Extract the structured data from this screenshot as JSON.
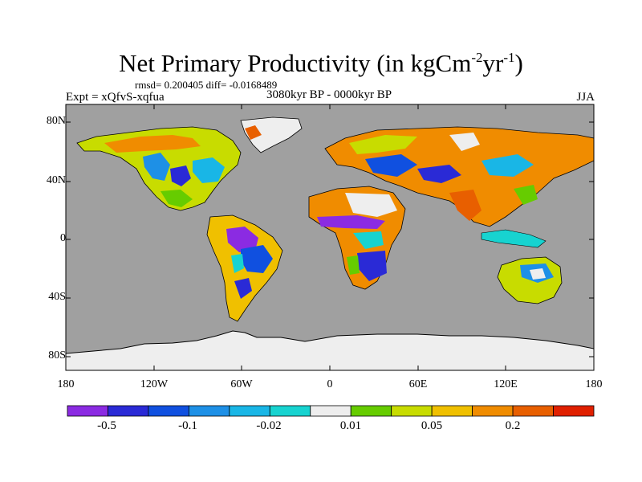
{
  "title": {
    "main": "Net Primary Productivity (in kgCm",
    "sup1": "-2",
    "mid": "yr",
    "sup2": "-1",
    "end": ")"
  },
  "stats": "rmsd= 0.200405  diff= -0.0168489",
  "experiment": "Expt = xQfvS-xqfua",
  "period": "3080kyr BP - 0000kyr BP",
  "season": "JJA",
  "lat_labels": [
    "80N",
    "40N",
    "0",
    "40S",
    "80S"
  ],
  "lon_labels": [
    "180",
    "120W",
    "60W",
    "0",
    "60E",
    "120E",
    "180"
  ],
  "colorbar": {
    "colors": [
      "#8b2be2",
      "#2a2ad6",
      "#1050e0",
      "#1e90e6",
      "#19b6e6",
      "#17d3d0",
      "#eeeeee",
      "#66cc00",
      "#c8dc00",
      "#f0c000",
      "#f08c00",
      "#e85f00",
      "#e02000"
    ],
    "labels": [
      "-0.5",
      "-0.1",
      "-0.02",
      "0.01",
      "0.05",
      "0.2"
    ]
  },
  "colors": {
    "ocean": "#a0a0a0",
    "ice": "#eeeeee"
  }
}
